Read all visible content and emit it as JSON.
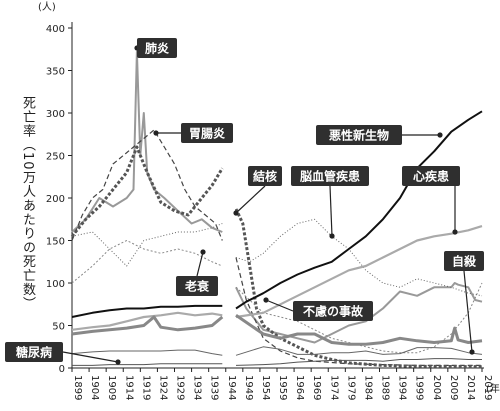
{
  "chart_data": {
    "type": "line",
    "title": "",
    "ylabel": "死亡率（10万人あたりの死亡数）",
    "y_unit": "(人)",
    "x_unit": "(年)",
    "ylim": [
      0,
      400
    ],
    "yticks": [
      0,
      50,
      100,
      150,
      200,
      250,
      300,
      350,
      400
    ],
    "xlim": [
      1899,
      2019
    ],
    "xticks": [
      "1899",
      "1904",
      "1909",
      "1914",
      "1919",
      "1924",
      "1929",
      "1934",
      "1939",
      "1944",
      "1949",
      "1954",
      "1959",
      "1964",
      "1969",
      "1974",
      "1979",
      "1984",
      "1989",
      "1994",
      "1999",
      "2004",
      "2009",
      "2014",
      "2019"
    ],
    "gap": [
      1944,
      1947
    ],
    "series": [
      {
        "name": "肺炎",
        "color": "#999999",
        "width": 2,
        "dash": "",
        "x": [
          1899,
          1903,
          1907,
          1911,
          1915,
          1917,
          1918,
          1919,
          1920,
          1921,
          1923,
          1926,
          1930,
          1934,
          1937,
          1940,
          1943,
          1947,
          1950,
          1955,
          1960,
          1965,
          1970,
          1975,
          1980,
          1985,
          1990,
          1995,
          2000,
          2005,
          2010,
          2011,
          2012,
          2015,
          2017,
          2019
        ],
        "y": [
          160,
          175,
          200,
          190,
          200,
          210,
          372,
          250,
          300,
          230,
          210,
          200,
          185,
          170,
          175,
          165,
          160,
          95,
          70,
          45,
          40,
          35,
          30,
          40,
          50,
          55,
          70,
          90,
          85,
          95,
          95,
          100,
          98,
          95,
          80,
          78
        ]
      },
      {
        "name": "胃腸炎",
        "color": "#444444",
        "width": 1.2,
        "dash": "5,3",
        "x": [
          1899,
          1902,
          1905,
          1908,
          1911,
          1914,
          1917,
          1920,
          1923,
          1926,
          1929,
          1932,
          1935,
          1938,
          1941,
          1943,
          1947,
          1950,
          1955,
          1960,
          1965,
          1970,
          1980,
          1990,
          2000,
          2019
        ],
        "y": [
          150,
          180,
          200,
          210,
          240,
          250,
          260,
          270,
          280,
          260,
          240,
          210,
          190,
          180,
          170,
          150,
          130,
          80,
          35,
          20,
          12,
          8,
          5,
          4,
          3,
          3
        ]
      },
      {
        "name": "結核",
        "color": "#555555",
        "width": 3,
        "dash": "3,2",
        "x": [
          1899,
          1903,
          1907,
          1911,
          1915,
          1918,
          1921,
          1925,
          1929,
          1933,
          1937,
          1940,
          1943,
          1947,
          1949,
          1951,
          1953,
          1955,
          1960,
          1965,
          1970,
          1975,
          1980,
          1990,
          2000,
          2019
        ],
        "y": [
          155,
          175,
          190,
          210,
          230,
          260,
          230,
          195,
          185,
          180,
          200,
          215,
          235,
          187,
          170,
          120,
          70,
          50,
          35,
          25,
          15,
          10,
          6,
          3,
          2,
          1.5
        ]
      },
      {
        "name": "老衰",
        "color": "#888888",
        "width": 1,
        "dash": "2,2",
        "x": [
          1899,
          1905,
          1910,
          1915,
          1920,
          1925,
          1930,
          1935,
          1940,
          1943,
          1947,
          1955,
          1960,
          1965,
          1970,
          1975,
          1980,
          1985,
          1990,
          1995,
          2000,
          2005,
          2010,
          2015,
          2019
        ],
        "y": [
          100,
          120,
          140,
          150,
          140,
          135,
          140,
          135,
          125,
          120,
          95,
          65,
          60,
          55,
          45,
          35,
          30,
          25,
          20,
          18,
          18,
          25,
          40,
          65,
          100
        ]
      },
      {
        "name": "脳血管疾患",
        "color": "#666666",
        "width": 1,
        "dash": "1,2",
        "x": [
          1899,
          1905,
          1910,
          1915,
          1920,
          1925,
          1930,
          1935,
          1940,
          1943,
          1947,
          1951,
          1955,
          1960,
          1965,
          1970,
          1975,
          1980,
          1985,
          1990,
          1995,
          2000,
          2005,
          2010,
          2015,
          2019
        ],
        "y": [
          155,
          160,
          140,
          120,
          150,
          155,
          160,
          160,
          165,
          170,
          130,
          125,
          135,
          155,
          170,
          175,
          155,
          140,
          115,
          100,
          95,
          105,
          100,
          95,
          88,
          85
        ]
      },
      {
        "name": "悪性新生物",
        "color": "#111111",
        "width": 2,
        "dash": "",
        "x": [
          1899,
          1905,
          1910,
          1915,
          1920,
          1925,
          1930,
          1935,
          1940,
          1943,
          1947,
          1950,
          1955,
          1960,
          1965,
          1970,
          1975,
          1980,
          1985,
          1990,
          1995,
          2000,
          2005,
          2010,
          2015,
          2019
        ],
        "y": [
          60,
          65,
          68,
          70,
          70,
          72,
          72,
          73,
          73,
          73,
          70,
          78,
          88,
          100,
          110,
          118,
          125,
          140,
          155,
          175,
          200,
          235,
          255,
          278,
          292,
          302
        ]
      },
      {
        "name": "心疾患",
        "color": "#aaaaaa",
        "width": 2.2,
        "dash": "",
        "x": [
          1899,
          1905,
          1910,
          1915,
          1920,
          1925,
          1930,
          1935,
          1940,
          1943,
          1947,
          1955,
          1960,
          1965,
          1970,
          1975,
          1980,
          1985,
          1990,
          1995,
          2000,
          2005,
          2010,
          2015,
          2019
        ],
        "y": [
          45,
          48,
          50,
          55,
          60,
          62,
          65,
          62,
          64,
          62,
          60,
          65,
          75,
          85,
          95,
          105,
          115,
          120,
          130,
          140,
          150,
          155,
          158,
          162,
          167
        ]
      },
      {
        "name": "自殺",
        "color": "#666666",
        "width": 1,
        "dash": "",
        "x": [
          1899,
          1905,
          1910,
          1915,
          1920,
          1925,
          1930,
          1935,
          1940,
          1943,
          1947,
          1955,
          1960,
          1965,
          1970,
          1975,
          1980,
          1985,
          1990,
          1995,
          2000,
          2005,
          2010,
          2015,
          2019
        ],
        "y": [
          17,
          19,
          20,
          20,
          20,
          20,
          21,
          21,
          17,
          15,
          15,
          25,
          22,
          16,
          16,
          18,
          18,
          20,
          16,
          17,
          24,
          24,
          23,
          18,
          16
        ]
      },
      {
        "name": "不慮の事故",
        "color": "#888888",
        "width": 3,
        "dash": "",
        "x": [
          1899,
          1905,
          1910,
          1915,
          1920,
          1923,
          1925,
          1930,
          1935,
          1940,
          1943,
          1947,
          1955,
          1960,
          1965,
          1970,
          1975,
          1980,
          1985,
          1990,
          1995,
          2000,
          2005,
          2010,
          2011,
          2012,
          2015,
          2019
        ],
        "y": [
          40,
          43,
          45,
          47,
          50,
          60,
          48,
          45,
          47,
          50,
          60,
          62,
          40,
          35,
          40,
          40,
          30,
          28,
          28,
          30,
          35,
          32,
          30,
          32,
          47,
          33,
          30,
          32
        ]
      },
      {
        "name": "糖尿病",
        "color": "#555555",
        "width": 1,
        "dash": "",
        "x": [
          1899,
          1905,
          1910,
          1915,
          1920,
          1925,
          1930,
          1935,
          1940,
          1943,
          1947,
          1955,
          1960,
          1965,
          1970,
          1975,
          1980,
          1985,
          1990,
          1995,
          2000,
          2005,
          2010,
          2015,
          2019
        ],
        "y": [
          3,
          3,
          4,
          4,
          4,
          5,
          5,
          5,
          5,
          5,
          3,
          4,
          5,
          7,
          8,
          9,
          9,
          9,
          8,
          10,
          10,
          11,
          11,
          10,
          10
        ]
      }
    ],
    "annotations": [
      {
        "text": "肺炎"
      },
      {
        "text": "胃腸炎"
      },
      {
        "text": "結核"
      },
      {
        "text": "脳血管疾患"
      },
      {
        "text": "悪性新生物"
      },
      {
        "text": "心疾患"
      },
      {
        "text": "老衰"
      },
      {
        "text": "自殺"
      },
      {
        "text": "不慮の事故"
      },
      {
        "text": "糖尿病"
      }
    ],
    "grid": false,
    "legend": "none"
  }
}
